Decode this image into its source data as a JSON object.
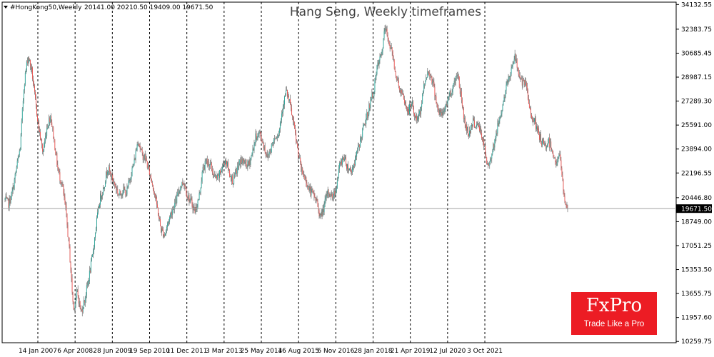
{
  "chart_data": {
    "type": "candlestick",
    "title": "Hang Seng, Weekly timeframes",
    "symbol_info": "#HongKong50,Weekly",
    "ohlc_info": "20141.00 20210.50 19409.00 19671.50",
    "last_price_label": "19671.50",
    "last_price": 19671.5,
    "ylim": [
      10170,
      34300
    ],
    "y_ticks": [
      "34132.55",
      "32383.75",
      "30685.45",
      "28987.15",
      "27289.30",
      "25591.00",
      "23894.00",
      "22196.55",
      "20446.80",
      "18749.00",
      "17051.25",
      "15353.50",
      "13655.75",
      "11957.60",
      "10259.75"
    ],
    "x_ticks": [
      "14 Jan 2007",
      "6 Apr 2008",
      "28 Jun 2009",
      "19 Sep 2010",
      "11 Dec 2011",
      "3 Mar 2013",
      "25 May 2014",
      "16 Aug 2015",
      "6 Nov 2016",
      "28 Jan 2018",
      "21 Apr 2019",
      "12 Jul 2020",
      "3 Oct 2021"
    ],
    "grid": "vertical dashed",
    "closes": [
      20300,
      20000,
      20900,
      22500,
      24000,
      28500,
      30500,
      29500,
      27200,
      25200,
      23600,
      25400,
      26300,
      24300,
      22300,
      21400,
      19500,
      16500,
      12500,
      13800,
      12300,
      13300,
      14700,
      16300,
      18600,
      20400,
      21200,
      22600,
      21900,
      21300,
      20600,
      21000,
      20800,
      22000,
      23000,
      24600,
      23500,
      23200,
      22200,
      21200,
      19800,
      18200,
      17800,
      18800,
      19600,
      20200,
      21200,
      21600,
      20600,
      20100,
      19500,
      20400,
      22400,
      23000,
      22800,
      21900,
      21800,
      22500,
      23200,
      22200,
      21600,
      22400,
      23100,
      22900,
      22700,
      23600,
      24800,
      25000,
      24200,
      23300,
      24000,
      24800,
      25000,
      26900,
      28000,
      27000,
      25500,
      23800,
      22300,
      21800,
      21000,
      20700,
      20200,
      19000,
      19900,
      20900,
      20500,
      21000,
      22700,
      23400,
      22700,
      22300,
      23000,
      24000,
      25100,
      26000,
      27100,
      28000,
      29800,
      30500,
      32500,
      31500,
      30500,
      28900,
      28000,
      27300,
      26500,
      27200,
      26000,
      26200,
      28000,
      29300,
      29200,
      28000,
      26500,
      26300,
      27000,
      27800,
      28400,
      29400,
      27500,
      25600,
      25000,
      25800,
      25600,
      25300,
      24100,
      22500,
      23600,
      24700,
      26000,
      27100,
      28400,
      29400,
      30500,
      29500,
      28500,
      28500,
      26700,
      26000,
      25200,
      24500,
      24000,
      24500,
      23800,
      22800,
      23500,
      20500,
      19670
    ]
  },
  "watermark": {
    "brand": "FxPro",
    "tagline": "Trade Like a Pro"
  },
  "colors": {
    "up": "#26a69a",
    "down": "#ef5350",
    "wick": "#555555",
    "grid": "#000000",
    "price_line": "#a0a0a0",
    "price_tag_bg": "#000000",
    "price_tag_text": "#ffffff",
    "logo_bg": "#ec1c24",
    "text": "#000000",
    "title_text": "#444444"
  }
}
